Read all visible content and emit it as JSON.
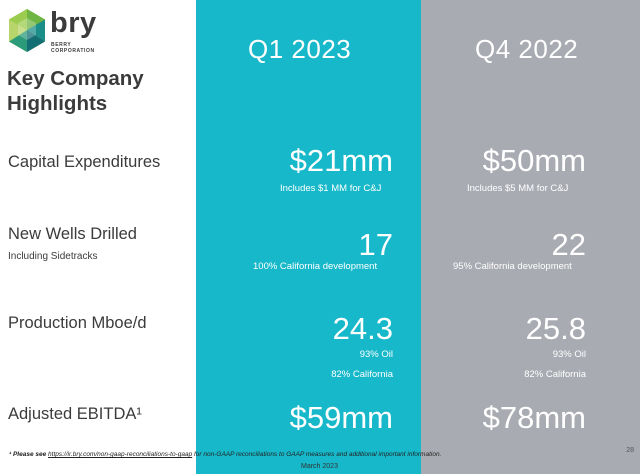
{
  "brand": {
    "name": "bry",
    "subtitle_line1": "BERRY",
    "subtitle_line2": "CORPORATION",
    "colors": {
      "teal": "#17b8c9",
      "gray": "#a9abb2",
      "green": "#8dc63f",
      "dark": "#3b3b3b"
    }
  },
  "title": "Key Company Highlights",
  "columns": [
    "Q1 2023",
    "Q4 2022"
  ],
  "rows": [
    {
      "label": "Capital Expenditures",
      "sublabel": "",
      "q1": {
        "value": "$21mm",
        "notes": [
          "Includes $1 MM for C&J"
        ]
      },
      "q4": {
        "value": "$50mm",
        "notes": [
          "Includes $5 MM for C&J"
        ]
      }
    },
    {
      "label": "New Wells Drilled",
      "sublabel": "Including Sidetracks",
      "q1": {
        "value": "17",
        "notes": [
          "100% California development"
        ]
      },
      "q4": {
        "value": "22",
        "notes": [
          "95% California development"
        ]
      }
    },
    {
      "label": "Production Mboe/d",
      "sublabel": "",
      "q1": {
        "value": "24.3",
        "notes": [
          "93% Oil",
          "82% California"
        ]
      },
      "q4": {
        "value": "25.8",
        "notes": [
          "93% Oil",
          "82% California"
        ]
      }
    },
    {
      "label": "Adjusted EBITDA¹",
      "sublabel": "",
      "q1": {
        "value": "$59mm",
        "notes": []
      },
      "q4": {
        "value": "$78mm",
        "notes": []
      }
    }
  ],
  "footnote": {
    "prefix": "¹ Please see ",
    "link": "https://ir.bry.com/non-gaap-reconciliations-to-gaap",
    "rest": " for non-GAAP reconciliations to GAAP measures and additional important information."
  },
  "date": "March 2023",
  "page_number": "28"
}
